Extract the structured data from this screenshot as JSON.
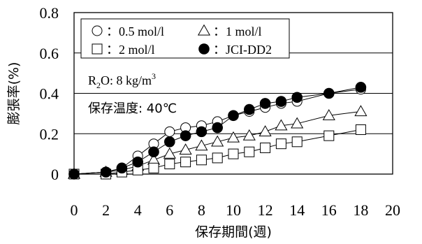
{
  "chart_data": {
    "type": "scatter",
    "xlabel": "保存期間(週)",
    "ylabel": "膨張率(%)",
    "xlim": [
      0,
      20
    ],
    "ylim": [
      0,
      0.8
    ],
    "xticks": [
      "0",
      "2",
      "4",
      "6",
      "8",
      "10",
      "12",
      "14",
      "16",
      "18",
      "20"
    ],
    "yticks": [
      "0",
      "0.2",
      "0.4",
      "0.6",
      "0.8"
    ],
    "grid": "horizontal",
    "legend_position": "top-left",
    "annotations": {
      "r2o_main": "R",
      "r2o_sub": "2",
      "r2o_rest": "O: 8 kg/m",
      "r2o_sup": "3",
      "temperature": "保存温度: 40℃"
    },
    "series": [
      {
        "name": "0.5 mol/l",
        "legend_label": "：0.5 mol/l",
        "marker": "open-circle",
        "x": [
          0,
          2,
          3,
          4,
          5,
          6,
          7,
          8,
          9,
          10,
          11,
          12,
          13,
          14,
          16,
          18
        ],
        "y": [
          0.0,
          0.01,
          0.03,
          0.09,
          0.15,
          0.21,
          0.23,
          0.24,
          0.26,
          0.29,
          0.31,
          0.33,
          0.35,
          0.36,
          0.4,
          0.42
        ]
      },
      {
        "name": "1 mol/l",
        "legend_label": "：1 mol/l",
        "marker": "open-triangle",
        "x": [
          0,
          2,
          3,
          4,
          5,
          6,
          7,
          8,
          9,
          10,
          11,
          12,
          13,
          14,
          16,
          18
        ],
        "y": [
          0.0,
          0.01,
          0.02,
          0.04,
          0.07,
          0.1,
          0.12,
          0.14,
          0.16,
          0.18,
          0.19,
          0.21,
          0.24,
          0.25,
          0.29,
          0.31
        ]
      },
      {
        "name": "2 mol/l",
        "legend_label": "：2 mol/l",
        "marker": "open-square",
        "x": [
          0,
          2,
          3,
          4,
          5,
          6,
          7,
          8,
          9,
          10,
          11,
          12,
          13,
          14,
          16,
          18
        ],
        "y": [
          0.0,
          0.0,
          0.01,
          0.02,
          0.03,
          0.05,
          0.06,
          0.07,
          0.08,
          0.1,
          0.11,
          0.13,
          0.15,
          0.16,
          0.19,
          0.22
        ]
      },
      {
        "name": "JCI-DD2",
        "legend_label": "：JCI-DD2",
        "marker": "filled-circle",
        "x": [
          0,
          2,
          3,
          4,
          5,
          6,
          7,
          8,
          9,
          10,
          11,
          12,
          13,
          14,
          16,
          18
        ],
        "y": [
          0.0,
          0.01,
          0.03,
          0.06,
          0.11,
          0.16,
          0.19,
          0.21,
          0.23,
          0.29,
          0.32,
          0.35,
          0.36,
          0.38,
          0.4,
          0.43
        ]
      }
    ]
  }
}
